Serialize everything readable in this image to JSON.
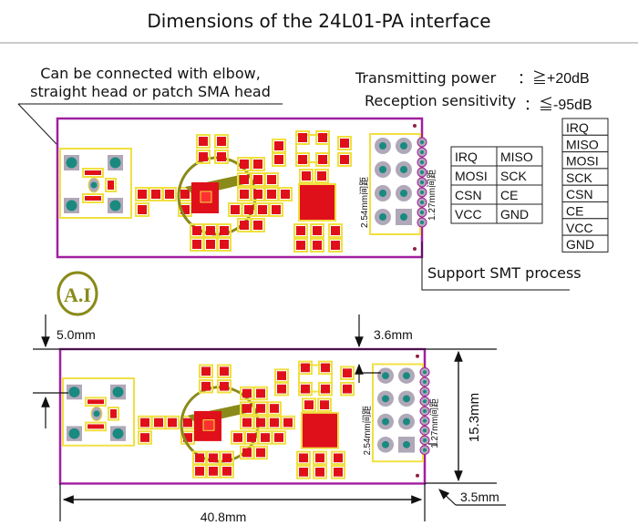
{
  "title": "Dimensions of the 24L01-PA interface",
  "annotations": {
    "sma_note_line1": "Can be connected with elbow,",
    "sma_note_line2": "straight head or patch SMA head",
    "tx_power_label": "Transmitting power",
    "tx_power_value": "：≧+20dB",
    "rx_sens_label": "Reception sensitivity",
    "rx_sens_value": "：≦-95dB",
    "smt_note": "Support SMT process",
    "pitch_254": "2.54mm间距",
    "pitch_127": "1.27mm间距"
  },
  "pin_table_2col": [
    [
      "IRQ",
      "MISO"
    ],
    [
      "MOSI",
      "SCK"
    ],
    [
      "CSN",
      "CE"
    ],
    [
      "VCC",
      "GND"
    ]
  ],
  "pin_table_1col": [
    "IRQ",
    "MISO",
    "MOSI",
    "SCK",
    "CSN",
    "CE",
    "VCC",
    "GND"
  ],
  "dimensions": {
    "sma_offset": "5.0mm",
    "header_offset": "3.6mm",
    "height": "15.3mm",
    "width": "40.8mm",
    "edge_pins": "3.5mm"
  },
  "logo": "A.I",
  "colors": {
    "board_outline": "#a020a0",
    "pad": "#e0101a",
    "silk": "#f0e040",
    "chip_circle": "#8a8a1a",
    "pin_teal": "#1a8a80",
    "pin_grey": "#b0a8b8"
  }
}
